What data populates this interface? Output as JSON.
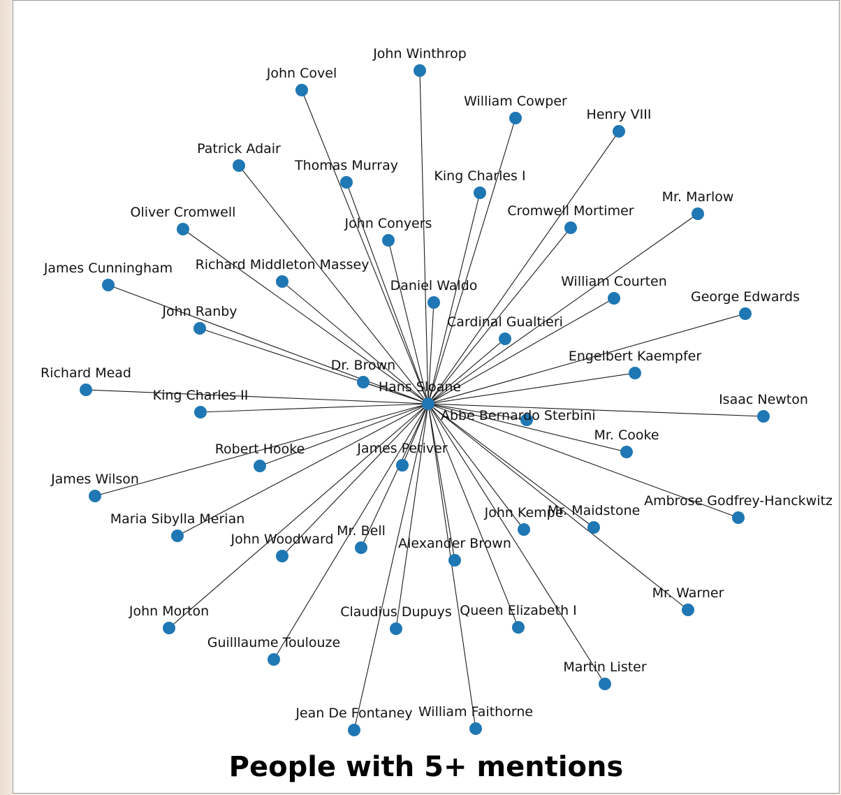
{
  "caption": "People with 5+ mentions",
  "colors": {
    "node": "#1f77b4",
    "edge": "#1a1a1a"
  },
  "graph": {
    "center": "Hans Sloane",
    "nodes": [
      "Hans Sloane",
      "John Winthrop",
      "John Covel",
      "William Cowper",
      "Henry VIII",
      "Patrick Adair",
      "Thomas Murray",
      "King Charles I",
      "Mr. Marlow",
      "Oliver Cromwell",
      "Cromwell Mortimer",
      "John Conyers",
      "James Cunningham",
      "Richard Middleton Massey",
      "Daniel Waldo",
      "William Courten",
      "George Edwards",
      "John Ranby",
      "Cardinal Gualtieri",
      "Engelbert Kaempfer",
      "Dr. Brown",
      "Richard Mead",
      "King Charles II",
      "Abbe Bernardo Sterbini",
      "Isaac Newton",
      "Mr. Cooke",
      "Robert Hooke",
      "James Petiver",
      "James Wilson",
      "Ambrose Godfrey-Hanckwitz",
      "Mr. Maidstone",
      "John Kempe",
      "Maria Sibylla Merian",
      "Mr. Bell",
      "John Woodward",
      "Alexander Brown",
      "Mr. Warner",
      "John Morton",
      "Claudius Dupuys",
      "Queen Elizabeth I",
      "Guilllaume Toulouze",
      "Martin Lister",
      "Jean De Fontaney",
      "William Faithorne"
    ],
    "edges_from_center_to": "all other nodes"
  }
}
